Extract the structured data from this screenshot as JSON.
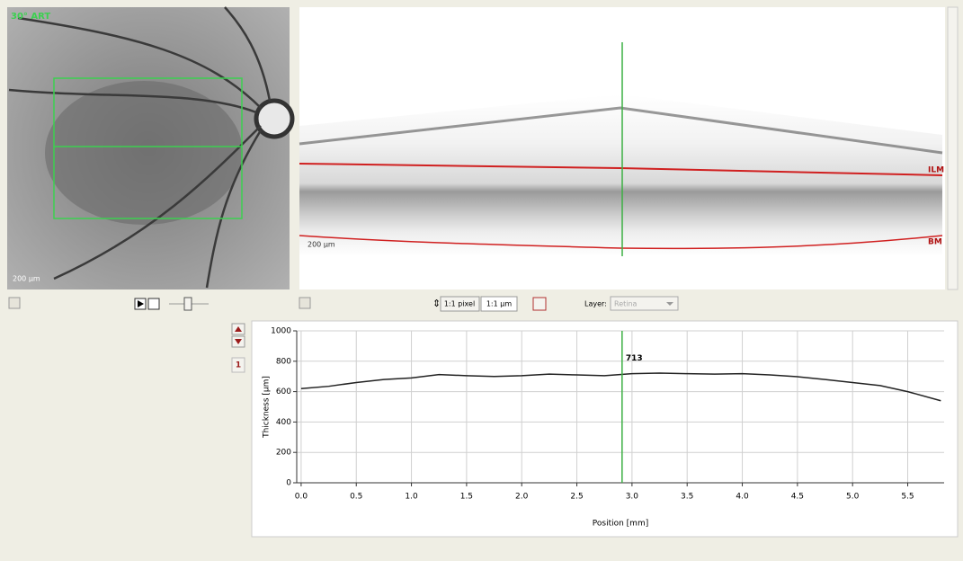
{
  "fundus": {
    "label": "30° ART",
    "scale": "200 µm"
  },
  "oct": {
    "scale": "200 µm",
    "top_layer": "ILM",
    "bottom_layer": "BM"
  },
  "toolbar": {
    "pixel_button": "1:1 pixel",
    "micron_button": "1:1 µm",
    "layer_label": "Layer:",
    "layer_value": "Retina",
    "page_number": "1"
  },
  "chart_data": {
    "type": "line",
    "xlabel": "Position [mm]",
    "ylabel": "Thickness [µm]",
    "x": [
      0,
      0.25,
      0.5,
      0.75,
      1.0,
      1.25,
      1.5,
      1.75,
      2.0,
      2.25,
      2.5,
      2.75,
      3.0,
      3.25,
      3.5,
      3.75,
      4.0,
      4.25,
      4.5,
      4.75,
      5.0,
      5.25,
      5.5,
      5.8
    ],
    "values": [
      620,
      635,
      660,
      680,
      690,
      712,
      705,
      700,
      705,
      715,
      710,
      705,
      718,
      722,
      718,
      715,
      718,
      710,
      698,
      680,
      660,
      640,
      600,
      540
    ],
    "color": "#222222",
    "xlim": [
      -0.04,
      5.83
    ],
    "ylim": [
      0,
      1000
    ],
    "xticks": [
      {
        "value": 0,
        "label": "0.0"
      },
      0.5,
      {
        "value": 1,
        "label": "1.0"
      },
      1.5,
      {
        "value": 2,
        "label": "2.0"
      },
      2.5,
      {
        "value": 3,
        "label": "3.0"
      },
      3.5,
      {
        "value": 4,
        "label": "4.0"
      },
      4.5,
      {
        "value": 5,
        "label": "5.0"
      },
      5.5
    ],
    "yticks": [
      0,
      200,
      400,
      600,
      800,
      1000
    ],
    "grid": true,
    "cursor": {
      "x": 2.91,
      "value": 713,
      "color": "#3cb043"
    }
  }
}
